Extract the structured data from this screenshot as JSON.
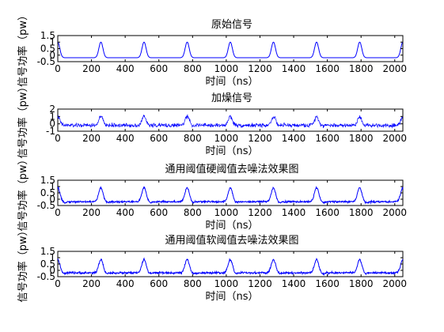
{
  "chart_data": [
    {
      "type": "line",
      "title": "原始信号",
      "xlabel": "时间（ns）",
      "ylabel": "信号功率（pw）",
      "xlim": [
        0,
        2048
      ],
      "ylim": [
        -0.5,
        1.5
      ],
      "xticks": [
        0,
        200,
        400,
        600,
        800,
        1000,
        1200,
        1400,
        1600,
        1800,
        2000
      ],
      "yticks": [
        -0.5,
        0,
        0.5,
        1,
        1.5
      ],
      "ytick_labels": [
        "-0.5",
        "0",
        "0.5",
        "1",
        "1.5"
      ],
      "signal": {
        "kind": "pulses",
        "baseline": -0.2,
        "peak": 1.0,
        "period": 256,
        "pulse_width": 12,
        "noise": 0
      },
      "series": [
        {
          "color": "#0000ff"
        }
      ]
    },
    {
      "type": "line",
      "title": "加燥信号",
      "xlabel": "时间（ns）",
      "ylabel": "信号功率（pw）",
      "xlim": [
        0,
        2048
      ],
      "ylim": [
        -1,
        2
      ],
      "xticks": [
        0,
        200,
        400,
        600,
        800,
        1000,
        1200,
        1400,
        1600,
        1800,
        2000
      ],
      "yticks": [
        -1,
        0,
        1,
        2
      ],
      "ytick_labels": [
        "-1",
        "0",
        "1",
        "2"
      ],
      "signal": {
        "kind": "pulses",
        "baseline": -0.2,
        "peak": 1.0,
        "period": 256,
        "pulse_width": 12,
        "noise": 0.3
      },
      "series": [
        {
          "color": "#0000ff"
        }
      ]
    },
    {
      "type": "line",
      "title": "通用阈值硬阈值去噪法效果图",
      "xlabel": "时间（ns）",
      "ylabel": "信号功率（pw）",
      "xlim": [
        0,
        2048
      ],
      "ylim": [
        -0.5,
        1.5
      ],
      "xticks": [
        0,
        200,
        400,
        600,
        800,
        1000,
        1200,
        1400,
        1600,
        1800,
        2000
      ],
      "yticks": [
        -0.5,
        0,
        0.5,
        1,
        1.5
      ],
      "ytick_labels": [
        "-0.5",
        "0",
        "0.5",
        "1",
        "1.5"
      ],
      "signal": {
        "kind": "pulses",
        "baseline": -0.2,
        "peak": 0.9,
        "period": 256,
        "pulse_width": 13,
        "noise": 0.08
      },
      "series": [
        {
          "color": "#0000ff"
        }
      ]
    },
    {
      "type": "line",
      "title": "通用阈值软阈值去噪法效果图",
      "xlabel": "时间（ns）",
      "ylabel": "信号功率（pw）",
      "xlim": [
        0,
        2048
      ],
      "ylim": [
        -0.5,
        1.5
      ],
      "xticks": [
        0,
        200,
        400,
        600,
        800,
        1000,
        1200,
        1400,
        1600,
        1800,
        2000
      ],
      "yticks": [
        -0.5,
        0,
        0.5,
        1,
        1.5
      ],
      "ytick_labels": [
        "-0.5",
        "0",
        "0.5",
        "1",
        "1.5"
      ],
      "signal": {
        "kind": "pulses",
        "baseline": -0.2,
        "peak": 0.85,
        "period": 256,
        "pulse_width": 13,
        "noise": 0.09
      },
      "series": [
        {
          "color": "#0000ff"
        }
      ]
    }
  ]
}
